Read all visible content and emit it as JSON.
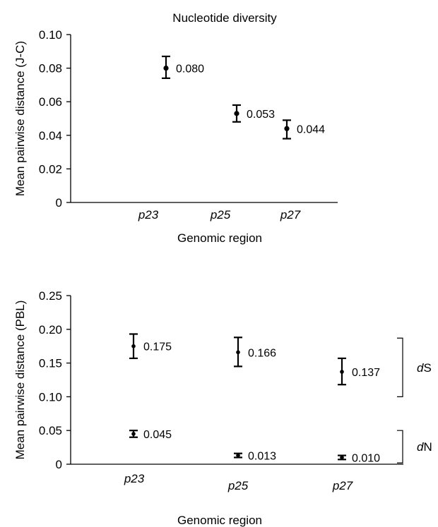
{
  "chart_data": [
    {
      "type": "scatter",
      "title": "Nucleotide diversity",
      "xlabel": "Genomic region",
      "ylabel": "Mean pairwise distance (J-C)",
      "categories": [
        "p23",
        "p25",
        "p27"
      ],
      "ylim": [
        0,
        0.1
      ],
      "yticks": [
        "0",
        "0.02",
        "0.04",
        "0.06",
        "0.08",
        "0.10"
      ],
      "yticks_values": [
        0,
        0.02,
        0.04,
        0.06,
        0.08,
        0.1
      ],
      "grid": false,
      "series": [
        {
          "values": [
            0.08,
            0.053,
            0.044
          ],
          "err_low": [
            0.074,
            0.048,
            0.038
          ],
          "err_high": [
            0.087,
            0.058,
            0.049
          ],
          "labels": [
            "0.080",
            "0.053",
            "0.044"
          ]
        }
      ]
    },
    {
      "type": "scatter",
      "title": "",
      "xlabel": "Genomic region",
      "ylabel": "Mean pairwise distance (PBL)",
      "categories": [
        "p23",
        "p25",
        "p27"
      ],
      "ylim": [
        0,
        0.25
      ],
      "yticks": [
        "0",
        "0.05",
        "0.10",
        "0.15",
        "0.20",
        "0.25"
      ],
      "yticks_values": [
        0,
        0.05,
        0.1,
        0.15,
        0.2,
        0.25
      ],
      "grid": false,
      "series": [
        {
          "name": "dS",
          "values": [
            0.175,
            0.166,
            0.137
          ],
          "err_low": [
            0.157,
            0.145,
            0.118
          ],
          "err_high": [
            0.193,
            0.188,
            0.157
          ],
          "labels": [
            "0.175",
            "0.166",
            "0.137"
          ]
        },
        {
          "name": "dN",
          "values": [
            0.045,
            0.013,
            0.01
          ],
          "err_low": [
            0.04,
            0.01,
            0.007
          ],
          "err_high": [
            0.05,
            0.016,
            0.013
          ],
          "labels": [
            "0.045",
            "0.013",
            "0.010"
          ]
        }
      ],
      "brackets": [
        {
          "prefix": "d",
          "suffix": "S",
          "from": 0.1,
          "to": 0.187
        },
        {
          "prefix": "d",
          "suffix": "N",
          "from": 0.002,
          "to": 0.05
        }
      ]
    }
  ]
}
